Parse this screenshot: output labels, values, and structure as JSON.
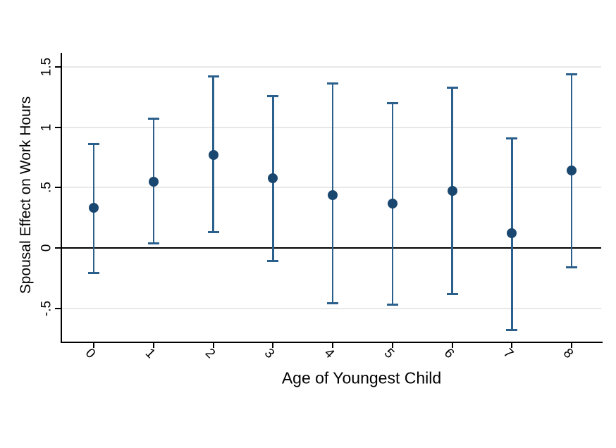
{
  "chart_data": {
    "type": "scatter",
    "subtype": "coefficient-plot-with-error-bars",
    "title": "",
    "xlabel": "Age of Youngest Child",
    "ylabel": "Spousal Effect on Work Hours",
    "categories": [
      "0",
      "1",
      "2",
      "3",
      "4",
      "5",
      "6",
      "7",
      "8"
    ],
    "series": [
      {
        "name": "spousal-effect-point-estimates",
        "values": [
          0.33,
          0.55,
          0.77,
          0.58,
          0.44,
          0.37,
          0.47,
          0.12,
          0.64
        ],
        "ci_lower": [
          -0.21,
          0.04,
          0.13,
          -0.11,
          -0.46,
          -0.47,
          -0.38,
          -0.68,
          -0.16
        ],
        "ci_upper": [
          0.86,
          1.07,
          1.42,
          1.26,
          1.36,
          1.2,
          1.33,
          0.91,
          1.44
        ]
      }
    ],
    "ylim": [
      -0.78,
      1.62
    ],
    "yticks": [
      1.5,
      1,
      0.5,
      0,
      -0.5
    ],
    "ytick_labels": [
      "1.5",
      "1",
      ".5",
      "0",
      "-.5"
    ],
    "grid": true,
    "zero_line": true,
    "legend": "none",
    "colors": {
      "marker": "#1A476F",
      "error_bar": "#2B5F8C",
      "gridline": "#E8E8E8",
      "axis": "#000000",
      "zero_line": "#000000",
      "background": "#FFFFFF"
    }
  }
}
